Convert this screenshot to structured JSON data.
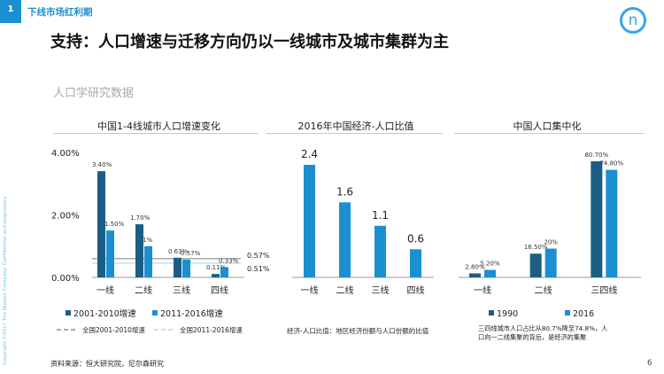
{
  "section": {
    "number": "1",
    "title": "下线市场红利期"
  },
  "logo": {
    "glyph": "n"
  },
  "confidential_text": "Copyright ©2017 The Nielsen Company. Confidential and proprietary.",
  "title": "支持：人口增速与迁移方向仍以一线城市及城市集群为主",
  "subtitle": "人口学研究数据",
  "panels": {
    "p1": "中国1-4线城市人口增速变化",
    "p2": "2016年中国经济-人口比值",
    "p3": "中国人口集中化"
  },
  "colors": {
    "dark": "#1b5e84",
    "light": "#1b8fd0",
    "axis": "#9a9a9a"
  },
  "chart_data": [
    {
      "type": "bar",
      "title": "中国1-4线城市人口增速变化",
      "categories": [
        "一线",
        "二线",
        "三线",
        "四线"
      ],
      "y_ticks": [
        {
          "value": 0,
          "label": "0.00%"
        },
        {
          "value": 2,
          "label": "2.00%"
        },
        {
          "value": 4,
          "label": "4.00%"
        }
      ],
      "ylim": [
        0,
        4
      ],
      "series": [
        {
          "name": "2001-2010增速",
          "values": [
            3.4,
            1.7,
            0.63,
            0.11
          ],
          "labels": [
            "3.40%",
            "1.70%",
            "0.63%",
            "0.11%"
          ]
        },
        {
          "name": "2011-2016增速",
          "values": [
            1.5,
            1.0,
            0.57,
            0.33
          ],
          "labels": [
            "1.50%",
            "1%",
            "0.57%",
            "0.33%"
          ]
        }
      ],
      "reference_lines": [
        {
          "name": "全国2001-2010增速",
          "value": 0.57,
          "label": "0.57%"
        },
        {
          "name": "全国2011-2016增速",
          "value": 0.51,
          "label": "0.51%"
        }
      ]
    },
    {
      "type": "bar",
      "title": "2016年中国经济-人口比值",
      "categories": [
        "一线",
        "二线",
        "三线",
        "四线"
      ],
      "values": [
        2.4,
        1.6,
        1.1,
        0.6
      ],
      "labels": [
        "2.4",
        "1.6",
        "1.1",
        "0.6"
      ],
      "ylim": [
        0,
        2.6
      ],
      "note": "经济-人口比值：地区经济份额与人口份额的比值"
    },
    {
      "type": "bar",
      "title": "中国人口集中化",
      "categories": [
        "一线",
        "二线",
        "三四线"
      ],
      "ylim": [
        0,
        84
      ],
      "series": [
        {
          "name": "1990",
          "values": [
            2.8,
            16.5,
            80.7
          ],
          "labels": [
            "2.80%",
            "16.50%",
            "80.70%"
          ]
        },
        {
          "name": "2016",
          "values": [
            5.2,
            20.0,
            74.8
          ],
          "labels": [
            "5.20%",
            "20%",
            "74.80%"
          ]
        }
      ],
      "note": "三四线城市人口占比从80.7%降至74.8%，人口向一二线集聚的背后，是经济的集聚"
    }
  ],
  "source": "资料来源：恒大研究院，尼尔森研究",
  "page_number": "6"
}
